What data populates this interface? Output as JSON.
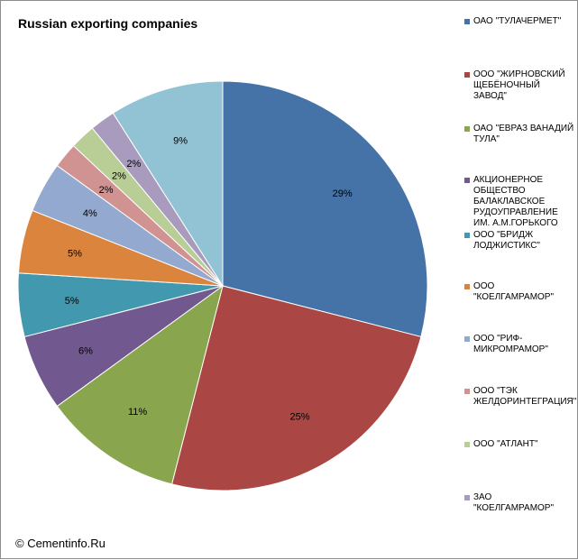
{
  "chart_data": {
    "type": "pie",
    "title": "Russian exporting companies",
    "slices": [
      {
        "label": "ОАО \"ТУЛАЧЕРМЕТ\"",
        "value": 29,
        "display": "29%",
        "color": "#4572A7"
      },
      {
        "label": "ООО \"ЖИРНОВСКИЙ ЩЕБЁНОЧНЫЙ ЗАВОД\"",
        "value": 25,
        "display": "25%",
        "color": "#AA4643"
      },
      {
        "label": "ОАО \"ЕВРАЗ ВАНАДИЙ ТУЛА\"",
        "value": 11,
        "display": "11%",
        "color": "#89A54E"
      },
      {
        "label": "АКЦИОНЕРНОЕ ОБЩЕСТВО БАЛАКЛАВСКОЕ РУДОУПРАВЛЕНИЕ ИМ. А.М.ГОРЬКОГО",
        "value": 6,
        "display": "6%",
        "color": "#71588F"
      },
      {
        "label": "ООО \"БРИДЖ ЛОДЖИСТИКС\"",
        "value": 5,
        "display": "5%",
        "color": "#4198AF"
      },
      {
        "label": "ООО \"КОЕЛГАМРАМОР\"",
        "value": 5,
        "display": "5%",
        "color": "#DB843D"
      },
      {
        "label": "ООО \"РИФ-МИКРОМРАМОР\"",
        "value": 4,
        "display": "4%",
        "color": "#93A9CF"
      },
      {
        "label": "ООО \"ТЭК ЖЕЛДОРИНТЕГРАЦИЯ\"",
        "value": 2,
        "display": "2%",
        "color": "#D19392"
      },
      {
        "label": "ООО \"АТЛАНТ\"",
        "value": 2,
        "display": "2%",
        "color": "#B9CD96"
      },
      {
        "label": "ЗАО \"КОЕЛГАМРАМОР\"",
        "value": 2,
        "display": "2%",
        "color": "#A99BBD"
      },
      {
        "label": "",
        "value": 9,
        "display": "9%",
        "color": "#92C3D4"
      }
    ],
    "legend_position": "right"
  },
  "footer": {
    "copyright": "© Cementinfo.Ru"
  }
}
